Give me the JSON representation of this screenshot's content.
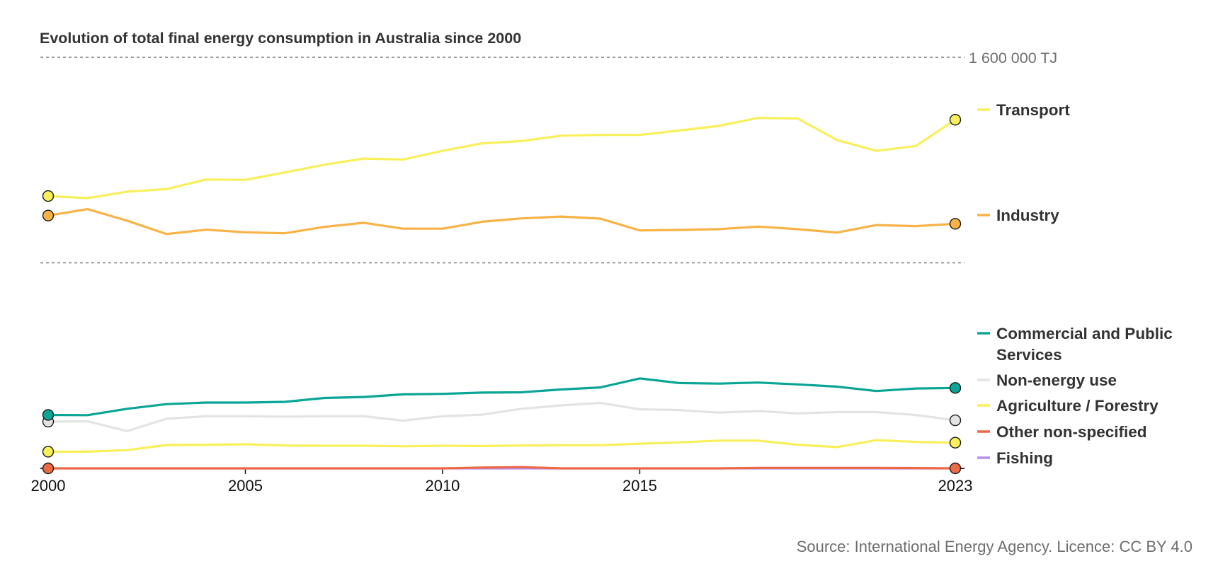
{
  "title": "Evolution of total final energy consumption in Australia since 2000",
  "source": "Source: International Energy Agency. Licence: CC BY 4.0",
  "chart_data": {
    "type": "line",
    "title": "Evolution of total final energy consumption in Australia since 2000",
    "x_ticks": [
      2000,
      2005,
      2010,
      2015,
      2023
    ],
    "reference_label": "1 600 000 TJ",
    "reference_value": 1600000,
    "ylim": [
      0,
      1600000
    ],
    "grid": "dashed lines at 1 600 000 TJ and 800 000 TJ",
    "legend_placement": "right, labels aligned with series end points",
    "x": [
      2000,
      2001,
      2002,
      2003,
      2004,
      2005,
      2006,
      2007,
      2008,
      2009,
      2010,
      2011,
      2012,
      2013,
      2014,
      2015,
      2016,
      2017,
      2018,
      2019,
      2020,
      2021,
      2022,
      2023
    ],
    "series": [
      {
        "name": "Transport",
        "color": "#f9ef5a",
        "values": [
          1060000,
          1052000,
          1077000,
          1087000,
          1124000,
          1123000,
          1152000,
          1182000,
          1206000,
          1202000,
          1236000,
          1265000,
          1274000,
          1295000,
          1298000,
          1298000,
          1315000,
          1333000,
          1364000,
          1362000,
          1278000,
          1236000,
          1255000,
          1357000
        ]
      },
      {
        "name": "Industry",
        "color": "#f8b246",
        "values": [
          984000,
          1009000,
          964000,
          912000,
          929000,
          919000,
          915000,
          940000,
          956000,
          933000,
          933000,
          960000,
          973000,
          980000,
          972000,
          926000,
          928000,
          931000,
          941000,
          931000,
          918000,
          947000,
          943000,
          952000
        ]
      },
      {
        "name": "Commercial and Public Services",
        "color": "#0aa595",
        "values": [
          208000,
          207000,
          232000,
          250000,
          256000,
          256000,
          259000,
          274000,
          278000,
          288000,
          290000,
          295000,
          296000,
          307000,
          315000,
          350000,
          332000,
          330000,
          334000,
          327000,
          318000,
          301000,
          311000,
          313000
        ]
      },
      {
        "name": "Non-energy use",
        "color": "#e3e3e3",
        "values": [
          182000,
          183000,
          145000,
          193000,
          203000,
          203000,
          201000,
          203000,
          203000,
          186000,
          203000,
          209000,
          232000,
          245000,
          255000,
          230000,
          227000,
          217000,
          223000,
          214000,
          219000,
          219000,
          208000,
          187000
        ]
      },
      {
        "name": "Agriculture / Forestry",
        "color": "#f9ef5a",
        "values": [
          65000,
          65000,
          71000,
          91000,
          92000,
          94000,
          89000,
          88000,
          88000,
          86000,
          88000,
          87000,
          89000,
          90000,
          90000,
          96000,
          101000,
          108000,
          108000,
          92000,
          83000,
          110000,
          103000,
          100000
        ]
      },
      {
        "name": "Other non-specified",
        "color": "#ee6a47",
        "values": [
          0,
          0,
          0,
          0,
          0,
          0,
          0,
          0,
          0,
          0,
          0,
          3000,
          5000,
          0,
          0,
          0,
          0,
          0,
          2000,
          2000,
          2000,
          2000,
          1000,
          0
        ]
      },
      {
        "name": "Fishing",
        "color": "#b58ff2",
        "values": [
          0,
          0,
          0,
          0,
          0,
          0,
          0,
          0,
          0,
          0,
          0,
          0,
          0,
          0,
          0,
          0,
          0,
          0,
          0,
          0,
          0,
          0,
          0,
          0
        ]
      }
    ]
  }
}
